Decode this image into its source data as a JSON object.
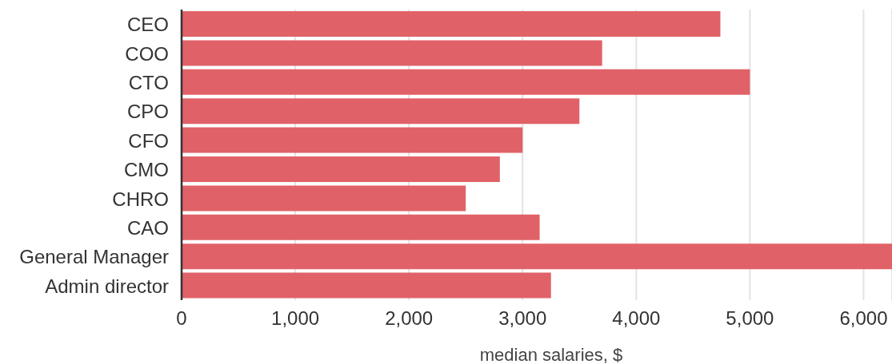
{
  "chart_data": {
    "type": "bar",
    "orientation": "horizontal",
    "categories": [
      "CEO",
      "COO",
      "CTO",
      "CPO",
      "CFO",
      "CMO",
      "CHRO",
      "CAO",
      "General Manager",
      "Admin director"
    ],
    "values": [
      4740,
      3700,
      5000,
      3500,
      3000,
      2800,
      2500,
      3150,
      6250,
      3250
    ],
    "color": "#e06268",
    "xlabel": "median salaries, $",
    "xlim": [
      0,
      6250
    ],
    "xticks": [
      0,
      {
        "value": 1000,
        "label": "1,000"
      },
      {
        "value": 2000,
        "label": "2,000"
      },
      {
        "value": 3000,
        "label": "3,000"
      },
      {
        "value": 4000,
        "label": "4,000"
      },
      {
        "value": 5000,
        "label": "5,000"
      },
      {
        "value": 6000,
        "label": "6,000"
      }
    ],
    "grid": "x"
  }
}
